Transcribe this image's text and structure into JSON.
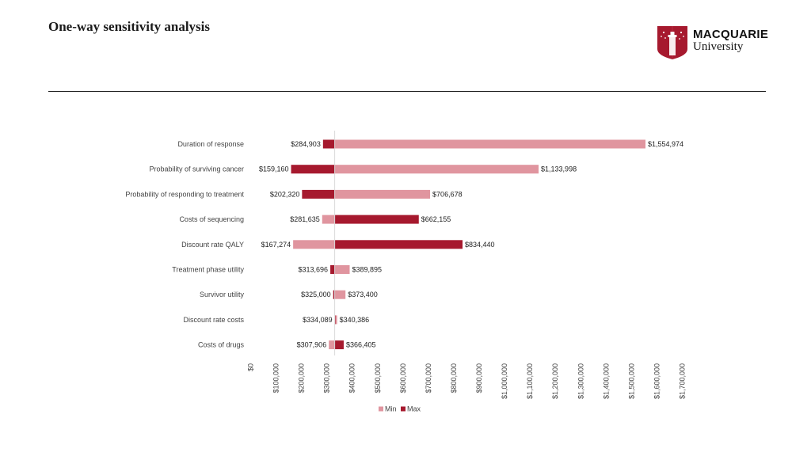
{
  "header": {
    "title": "One-way sensitivity analysis",
    "logo_name": "MACQUARIE",
    "logo_sub": "University"
  },
  "colors": {
    "min": "#e0959f",
    "max": "#a6192e"
  },
  "chart_data": {
    "type": "bar",
    "orientation": "horizontal-tornado",
    "base_value": 331000,
    "xlim": [
      0,
      1700000
    ],
    "categories": [
      "Duration of response",
      "Probability of surviving cancer",
      "Probability of responding to treatment",
      "Costs of sequencing",
      "Discount rate QALY",
      "Treatment phase utility",
      "Survivor utility",
      "Discount rate costs",
      "Costs of drugs"
    ],
    "series": [
      {
        "name": "Min",
        "values": [
          1554974,
          1133998,
          706678,
          281635,
          167274,
          389895,
          373400,
          340386,
          307906
        ]
      },
      {
        "name": "Max",
        "values": [
          284903,
          159160,
          202320,
          662155,
          834440,
          313696,
          325000,
          334089,
          366405
        ]
      }
    ],
    "left_labels": [
      "$284,903",
      "$159,160",
      "$202,320",
      "$281,635",
      "$167,274",
      "$313,696",
      "$325,000",
      "$334,089",
      "$307,906"
    ],
    "right_labels": [
      "$1,554,974",
      "$1,133,998",
      "$706,678",
      "$662,155",
      "$834,440",
      "$389,895",
      "$373,400",
      "$340,386",
      "$366,405"
    ],
    "ticks": [
      0,
      100000,
      200000,
      300000,
      400000,
      500000,
      600000,
      700000,
      800000,
      900000,
      1000000,
      1100000,
      1200000,
      1300000,
      1400000,
      1500000,
      1600000,
      1700000
    ],
    "tick_labels": [
      "$0",
      "$100,000",
      "$200,000",
      "$300,000",
      "$400,000",
      "$500,000",
      "$600,000",
      "$700,000",
      "$800,000",
      "$900,000",
      "$1,000,000",
      "$1,100,000",
      "$1,200,000",
      "$1,300,000",
      "$1,400,000",
      "$1,500,000",
      "$1,600,000",
      "$1,700,000"
    ],
    "legend": [
      "Min",
      "Max"
    ],
    "legend_position": "bottom"
  }
}
